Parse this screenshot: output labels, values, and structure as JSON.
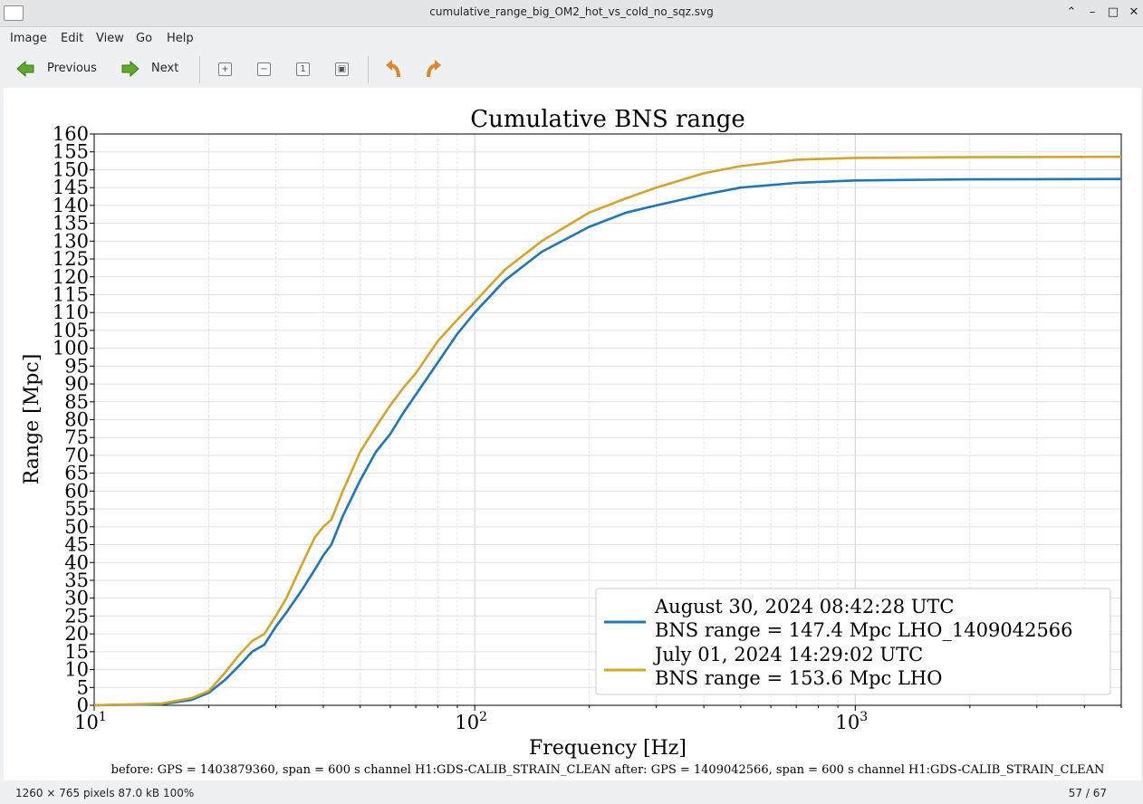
{
  "window": {
    "title": "cumulative_range_big_OM2_hot_vs_cold_no_sqz.svg"
  },
  "menu": [
    "Image",
    "Edit",
    "View",
    "Go",
    "Help"
  ],
  "toolbar": {
    "previous_label": "Previous",
    "next_label": "Next"
  },
  "status": {
    "info": "1260 × 765 pixels  87.0 kB   100%",
    "position": "57 / 67"
  },
  "colors": {
    "series_blue": "#1f77b4",
    "series_gold": "#d4a52a"
  },
  "chart_data": {
    "type": "line",
    "title": "Cumulative BNS range",
    "xlabel": "Frequency [Hz]",
    "ylabel": "Range [Mpc]",
    "xscale": "log",
    "xlim": [
      10,
      5000
    ],
    "ylim": [
      0,
      160
    ],
    "yticks": [
      0,
      5,
      10,
      15,
      20,
      25,
      30,
      35,
      40,
      45,
      50,
      55,
      60,
      65,
      70,
      75,
      80,
      85,
      90,
      95,
      100,
      105,
      110,
      115,
      120,
      125,
      130,
      135,
      140,
      145,
      150,
      155,
      160
    ],
    "xtick_labels": [
      {
        "base": "10",
        "exp": "1",
        "value": 10
      },
      {
        "base": "10",
        "exp": "2",
        "value": 100
      },
      {
        "base": "10",
        "exp": "3",
        "value": 1000
      }
    ],
    "grid": true,
    "legend_position": "lower-right",
    "footer": "before: GPS = 1403879360, span = 600 s channel H1:GDS-CALIB_STRAIN_CLEAN after: GPS = 1409042566, span = 600 s channel H1:GDS-CALIB_STRAIN_CLEAN",
    "series": [
      {
        "name_line1": "August 30, 2024 08:42:28 UTC",
        "name_line2": "BNS range = 147.4 Mpc LHO_1409042566",
        "color": "#1f77b4",
        "x": [
          10,
          15,
          18,
          20,
          22,
          24,
          26,
          28,
          30,
          32,
          35,
          38,
          40,
          42,
          45,
          50,
          55,
          60,
          65,
          70,
          80,
          90,
          100,
          120,
          150,
          200,
          250,
          300,
          400,
          500,
          700,
          1000,
          2000,
          5000
        ],
        "y": [
          0,
          0.3,
          1.5,
          3.5,
          7,
          11,
          15,
          17,
          22,
          26,
          32,
          38,
          42,
          45,
          53,
          63,
          71,
          76,
          82,
          87,
          96,
          104,
          110,
          119,
          127,
          134,
          138,
          140,
          143,
          145,
          146.3,
          147,
          147.3,
          147.4
        ]
      },
      {
        "name_line1": "July 01, 2024 14:29:02 UTC",
        "name_line2": "BNS range = 153.6 Mpc LHO",
        "color": "#d4a52a",
        "x": [
          10,
          15,
          18,
          20,
          22,
          24,
          26,
          28,
          30,
          32,
          35,
          38,
          40,
          42,
          45,
          50,
          55,
          60,
          65,
          70,
          80,
          90,
          100,
          120,
          150,
          200,
          250,
          300,
          400,
          500,
          700,
          1000,
          2000,
          5000
        ],
        "y": [
          0,
          0.5,
          2,
          4,
          9,
          14,
          18,
          20,
          25,
          30,
          39,
          47,
          50,
          52,
          60,
          71,
          78,
          84,
          89,
          93,
          102,
          108,
          113,
          122,
          130,
          138,
          142,
          145,
          149,
          151,
          152.8,
          153.3,
          153.5,
          153.6
        ]
      }
    ]
  }
}
